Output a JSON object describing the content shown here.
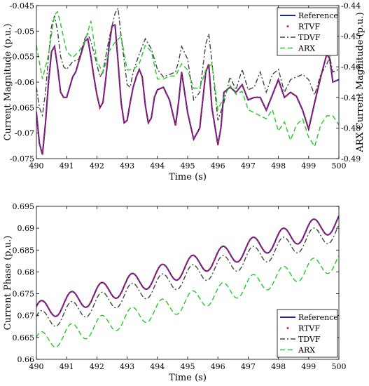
{
  "chart_data": [
    {
      "type": "line",
      "xlabel": "Time (s)",
      "ylabel": "Current Magnitude (p.u.)",
      "y2label": "ARX Current Magnitude (p.u.)",
      "xlim": [
        490,
        500
      ],
      "ylim": [
        -0.075,
        -0.045
      ],
      "y2lim": [
        -0.49,
        -0.44
      ],
      "xticks": [
        "490",
        "491",
        "492",
        "493",
        "494",
        "495",
        "496",
        "497",
        "498",
        "499",
        "500"
      ],
      "yticks": [
        "-0.075",
        "-0.07",
        "-0.065",
        "-0.06",
        "-0.055",
        "-0.05",
        "-0.045"
      ],
      "y2ticks": [
        "-0.49",
        "-0.48",
        "-0.47",
        "-0.46",
        "-0.45",
        "-0.44"
      ],
      "legend": [
        "Reference",
        "RTVF",
        "TDVF",
        "ARX"
      ],
      "legend_position": "top-right",
      "grid": false,
      "series": [
        {
          "name": "Reference",
          "color": "#1f1fbf",
          "style": "solid",
          "x": [
            490.0,
            490.1,
            490.2,
            490.3,
            490.4,
            490.5,
            490.6,
            490.7,
            490.8,
            490.9,
            491.0,
            491.1,
            491.2,
            491.3,
            491.4,
            491.5,
            491.6,
            491.7,
            491.8,
            491.9,
            492.0,
            492.1,
            492.2,
            492.3,
            492.4,
            492.5,
            492.6,
            492.7,
            492.8,
            492.9,
            493.0,
            493.1,
            493.2,
            493.3,
            493.4,
            493.5,
            493.6,
            493.7,
            493.8,
            493.9,
            494.0,
            494.2,
            494.4,
            494.6,
            494.7,
            494.8,
            495.0,
            495.2,
            495.4,
            495.6,
            495.7,
            495.8,
            496.0,
            496.1,
            496.2,
            496.4,
            496.6,
            496.8,
            497.0,
            497.2,
            497.4,
            497.6,
            497.8,
            498.0,
            498.2,
            498.4,
            498.6,
            498.8,
            499.0,
            499.2,
            499.4,
            499.6,
            499.7,
            499.8,
            500.0
          ],
          "y": [
            -0.066,
            -0.072,
            -0.0742,
            -0.068,
            -0.06,
            -0.054,
            -0.053,
            -0.057,
            -0.062,
            -0.063,
            -0.063,
            -0.061,
            -0.059,
            -0.058,
            -0.056,
            -0.054,
            -0.052,
            -0.0515,
            -0.055,
            -0.059,
            -0.0625,
            -0.065,
            -0.064,
            -0.059,
            -0.053,
            -0.049,
            -0.0488,
            -0.056,
            -0.064,
            -0.068,
            -0.0675,
            -0.064,
            -0.061,
            -0.059,
            -0.0575,
            -0.059,
            -0.0645,
            -0.068,
            -0.067,
            -0.063,
            -0.0615,
            -0.061,
            -0.0635,
            -0.0685,
            -0.064,
            -0.058,
            -0.066,
            -0.0712,
            -0.069,
            -0.058,
            -0.0565,
            -0.065,
            -0.0723,
            -0.069,
            -0.062,
            -0.061,
            -0.062,
            -0.0605,
            -0.0635,
            -0.063,
            -0.063,
            -0.0655,
            -0.0625,
            -0.0595,
            -0.063,
            -0.062,
            -0.0628,
            -0.0655,
            -0.0692,
            -0.064,
            -0.059,
            -0.0545,
            -0.0555,
            -0.06,
            -0.0595
          ]
        },
        {
          "name": "RTVF",
          "color": "#d4213a",
          "style": "dotted",
          "x": [
            490.0,
            490.1,
            490.2,
            490.3,
            490.4,
            490.5,
            490.6,
            490.7,
            490.8,
            490.9,
            491.0,
            491.1,
            491.2,
            491.3,
            491.4,
            491.5,
            491.6,
            491.7,
            491.8,
            491.9,
            492.0,
            492.1,
            492.2,
            492.3,
            492.4,
            492.5,
            492.6,
            492.7,
            492.8,
            492.9,
            493.0,
            493.1,
            493.2,
            493.3,
            493.4,
            493.5,
            493.6,
            493.7,
            493.8,
            493.9,
            494.0,
            494.2,
            494.4,
            494.6,
            494.7,
            494.8,
            495.0,
            495.2,
            495.4,
            495.6,
            495.7,
            495.8,
            496.0,
            496.1,
            496.2,
            496.4,
            496.6,
            496.8,
            497.0,
            497.2,
            497.4,
            497.6,
            497.8,
            498.0,
            498.2,
            498.4,
            498.6,
            498.8,
            499.0,
            499.2,
            499.4,
            499.6,
            499.7,
            499.8,
            500.0
          ],
          "y": [
            -0.066,
            -0.072,
            -0.0742,
            -0.068,
            -0.06,
            -0.054,
            -0.053,
            -0.057,
            -0.062,
            -0.063,
            -0.063,
            -0.061,
            -0.059,
            -0.058,
            -0.056,
            -0.054,
            -0.052,
            -0.0515,
            -0.055,
            -0.059,
            -0.0625,
            -0.065,
            -0.064,
            -0.059,
            -0.053,
            -0.049,
            -0.0488,
            -0.056,
            -0.064,
            -0.068,
            -0.0675,
            -0.064,
            -0.061,
            -0.059,
            -0.0575,
            -0.059,
            -0.0645,
            -0.068,
            -0.067,
            -0.063,
            -0.0615,
            -0.061,
            -0.0635,
            -0.0685,
            -0.064,
            -0.058,
            -0.066,
            -0.0712,
            -0.069,
            -0.058,
            -0.0565,
            -0.065,
            -0.0723,
            -0.069,
            -0.062,
            -0.061,
            -0.062,
            -0.0605,
            -0.0635,
            -0.063,
            -0.063,
            -0.0655,
            -0.0625,
            -0.0595,
            -0.063,
            -0.062,
            -0.0628,
            -0.0655,
            -0.0692,
            -0.064,
            -0.059,
            -0.0545,
            -0.0555,
            -0.06,
            -0.0595
          ]
        },
        {
          "name": "TDVF",
          "color": "#444444",
          "style": "dashdot",
          "x": [
            490.0,
            490.1,
            490.2,
            490.3,
            490.4,
            490.5,
            490.6,
            490.7,
            490.8,
            490.9,
            491.0,
            491.2,
            491.4,
            491.6,
            491.7,
            491.8,
            492.0,
            492.1,
            492.2,
            492.4,
            492.6,
            492.7,
            492.8,
            493.0,
            493.1,
            493.2,
            493.4,
            493.6,
            493.8,
            494.0,
            494.2,
            494.4,
            494.6,
            494.7,
            494.8,
            495.0,
            495.2,
            495.4,
            495.6,
            495.7,
            495.8,
            496.0,
            496.2,
            496.4,
            496.6,
            496.8,
            497.0,
            497.2,
            497.4,
            497.6,
            497.8,
            498.0,
            498.2,
            498.4,
            498.6,
            498.8,
            499.0,
            499.2,
            499.4,
            499.6,
            499.7,
            499.8,
            500.0
          ],
          "y": [
            -0.061,
            -0.065,
            -0.0665,
            -0.062,
            -0.055,
            -0.049,
            -0.047,
            -0.05,
            -0.055,
            -0.057,
            -0.0575,
            -0.056,
            -0.0555,
            -0.0515,
            -0.0505,
            -0.052,
            -0.0565,
            -0.059,
            -0.058,
            -0.0515,
            -0.0465,
            -0.0455,
            -0.051,
            -0.0605,
            -0.061,
            -0.058,
            -0.0545,
            -0.0515,
            -0.0535,
            -0.0575,
            -0.059,
            -0.0585,
            -0.058,
            -0.056,
            -0.053,
            -0.0555,
            -0.0635,
            -0.062,
            -0.0525,
            -0.0505,
            -0.056,
            -0.0675,
            -0.064,
            -0.059,
            -0.0615,
            -0.0575,
            -0.0615,
            -0.061,
            -0.058,
            -0.062,
            -0.0585,
            -0.0575,
            -0.062,
            -0.0595,
            -0.059,
            -0.0585,
            -0.0595,
            -0.0625,
            -0.0585,
            -0.0565,
            -0.055,
            -0.058,
            -0.0575
          ]
        },
        {
          "name": "ARX",
          "color": "#22cc22",
          "style": "dashed",
          "axis": "right",
          "x": [
            490.0,
            490.2,
            490.4,
            490.6,
            490.7,
            490.8,
            491.0,
            491.2,
            491.4,
            491.6,
            491.8,
            492.0,
            492.2,
            492.4,
            492.6,
            492.8,
            493.0,
            493.2,
            493.4,
            493.6,
            493.8,
            494.0,
            494.2,
            494.4,
            494.6,
            494.8,
            495.0,
            495.2,
            495.4,
            495.6,
            495.8,
            496.0,
            496.2,
            496.4,
            496.6,
            496.8,
            497.0,
            497.2,
            497.4,
            497.6,
            497.8,
            498.0,
            498.2,
            498.4,
            498.6,
            498.8,
            499.0,
            499.2,
            499.4,
            499.6,
            499.8,
            500.0
          ],
          "y": [
            -0.453,
            -0.464,
            -0.456,
            -0.443,
            -0.442,
            -0.446,
            -0.455,
            -0.457,
            -0.455,
            -0.452,
            -0.445,
            -0.458,
            -0.462,
            -0.455,
            -0.452,
            -0.45,
            -0.461,
            -0.461,
            -0.459,
            -0.453,
            -0.455,
            -0.464,
            -0.464,
            -0.463,
            -0.463,
            -0.459,
            -0.461,
            -0.467,
            -0.467,
            -0.461,
            -0.459,
            -0.474,
            -0.47,
            -0.466,
            -0.469,
            -0.468,
            -0.474,
            -0.475,
            -0.476,
            -0.477,
            -0.474,
            -0.481,
            -0.478,
            -0.484,
            -0.479,
            -0.477,
            -0.483,
            -0.486,
            -0.479,
            -0.476,
            -0.476,
            -0.479
          ]
        }
      ]
    },
    {
      "type": "line",
      "xlabel": "Time (s)",
      "ylabel": "Current Phase (p.u.)",
      "xlim": [
        490,
        500
      ],
      "ylim": [
        0.66,
        0.695
      ],
      "xticks": [
        "490",
        "491",
        "492",
        "493",
        "494",
        "495",
        "496",
        "497",
        "498",
        "499",
        "500"
      ],
      "yticks": [
        "0.66",
        "0.665",
        "0.67",
        "0.675",
        "0.68",
        "0.685",
        "0.69",
        "0.695"
      ],
      "legend": [
        "Reference",
        "RTVF",
        "TDVF",
        "ARX"
      ],
      "legend_position": "bottom-right",
      "grid": false,
      "wave": {
        "period": 1.0,
        "series": [
          {
            "name": "Reference",
            "color": "#1f1fbf",
            "style": "solid",
            "start": 0.6708,
            "end": 0.6915,
            "amplitude": 0.0023,
            "phase": 0.6
          },
          {
            "name": "RTVF",
            "color": "#d4213a",
            "style": "dotted",
            "start": 0.6708,
            "end": 0.6915,
            "amplitude": 0.0023,
            "phase": 0.6
          },
          {
            "name": "TDVF",
            "color": "#444444",
            "style": "dashdot",
            "start": 0.6685,
            "end": 0.6895,
            "amplitude": 0.0023,
            "phase": 0.6
          },
          {
            "name": "ARX",
            "color": "#22cc22",
            "style": "dashed",
            "start": 0.6638,
            "end": 0.6825,
            "amplitude": 0.0022,
            "phase": 0.6
          }
        ]
      }
    }
  ]
}
